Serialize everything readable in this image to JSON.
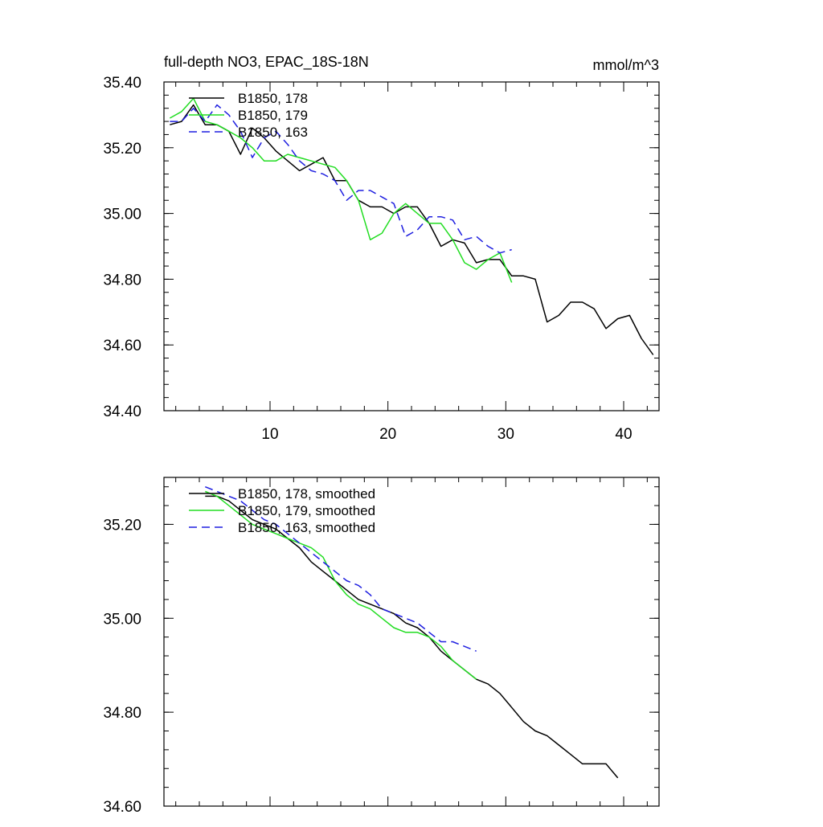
{
  "chart_data": [
    {
      "type": "line",
      "title": "full-depth NO3, EPAC_18S-18N",
      "units_label": "mmol/m^3",
      "xlim": [
        1,
        43
      ],
      "ylim": [
        34.4,
        35.4
      ],
      "xticks": [
        10,
        20,
        30,
        40
      ],
      "xtick_labels": [
        "10",
        "20",
        "30",
        "40"
      ],
      "yticks": [
        34.4,
        34.6,
        34.8,
        35.0,
        35.2,
        35.4
      ],
      "ytick_labels": [
        "34.40",
        "34.60",
        "34.80",
        "35.00",
        "35.20",
        "35.40"
      ],
      "legend_position": "top-left",
      "series": [
        {
          "name": "B1850, 178",
          "color": "#000000",
          "dash": "solid",
          "x": [
            1.5,
            2.5,
            3.5,
            4.5,
            5.5,
            6.5,
            7.5,
            8.5,
            9.5,
            10.5,
            11.5,
            12.5,
            13.5,
            14.5,
            15.5,
            16.5,
            17.5,
            18.5,
            19.5,
            20.5,
            21.5,
            22.5,
            23.5,
            24.5,
            25.5,
            26.5,
            27.5,
            28.5,
            29.5,
            30.5,
            31.5,
            32.5,
            33.5,
            34.5,
            35.5,
            36.5,
            37.5,
            38.5,
            39.5,
            40.5,
            41.5,
            42.5
          ],
          "values": [
            35.27,
            35.28,
            35.33,
            35.27,
            35.27,
            35.25,
            35.18,
            35.26,
            35.23,
            35.19,
            35.16,
            35.13,
            35.15,
            35.17,
            35.1,
            35.1,
            35.04,
            35.02,
            35.02,
            35.0,
            35.02,
            35.02,
            34.97,
            34.9,
            34.92,
            34.91,
            34.85,
            34.86,
            34.86,
            34.81,
            34.81,
            34.8,
            34.67,
            34.69,
            34.73,
            34.73,
            34.71,
            34.65,
            34.68,
            34.69,
            34.62,
            34.57
          ]
        },
        {
          "name": "B1850, 179",
          "color": "#22dd22",
          "dash": "solid",
          "x": [
            1.5,
            2.5,
            3.5,
            4.5,
            5.5,
            6.5,
            7.5,
            8.5,
            9.5,
            10.5,
            11.5,
            12.5,
            13.5,
            14.5,
            15.5,
            16.5,
            17.5,
            18.5,
            19.5,
            20.5,
            21.5,
            22.5,
            23.5,
            24.5,
            25.5,
            26.5,
            27.5,
            28.5,
            29.5,
            30.5
          ],
          "values": [
            35.29,
            35.31,
            35.35,
            35.28,
            35.27,
            35.25,
            35.23,
            35.2,
            35.16,
            35.16,
            35.18,
            35.17,
            35.16,
            35.15,
            35.14,
            35.1,
            35.04,
            34.92,
            34.94,
            35.0,
            35.03,
            35.0,
            34.97,
            34.97,
            34.92,
            34.85,
            34.83,
            34.86,
            34.88,
            34.79
          ]
        },
        {
          "name": "B1850, 163",
          "color": "#1f1fe0",
          "dash": "dashed",
          "x": [
            1.5,
            2.5,
            3.5,
            4.5,
            5.5,
            6.5,
            7.5,
            8.5,
            9.5,
            10.5,
            11.5,
            12.5,
            13.5,
            14.5,
            15.5,
            16.5,
            17.5,
            18.5,
            19.5,
            20.5,
            21.5,
            22.5,
            23.5,
            24.5,
            25.5,
            26.5,
            27.5,
            28.5,
            29.5,
            30.5
          ],
          "values": [
            35.28,
            35.28,
            35.32,
            35.28,
            35.33,
            35.3,
            35.25,
            35.17,
            35.23,
            35.25,
            35.21,
            35.16,
            35.13,
            35.12,
            35.1,
            35.04,
            35.07,
            35.07,
            35.05,
            35.03,
            34.93,
            34.95,
            34.99,
            34.99,
            34.98,
            34.92,
            34.93,
            34.9,
            34.88,
            34.89
          ]
        }
      ]
    },
    {
      "type": "line",
      "xlim": [
        1,
        43
      ],
      "ylim": [
        34.6,
        35.3
      ],
      "xticks": [
        10,
        20,
        30,
        40
      ],
      "xtick_labels": [],
      "yticks": [
        34.6,
        34.8,
        35.0,
        35.2
      ],
      "ytick_labels": [
        "34.60",
        "34.80",
        "35.00",
        "35.20"
      ],
      "legend_position": "top-left",
      "series": [
        {
          "name": "B1850, 178, smoothed",
          "color": "#000000",
          "dash": "solid",
          "x": [
            4.5,
            5.5,
            6.5,
            7.5,
            8.5,
            9.5,
            10.5,
            11.5,
            12.5,
            13.5,
            14.5,
            15.5,
            16.5,
            17.5,
            18.5,
            19.5,
            20.5,
            21.5,
            22.5,
            23.5,
            24.5,
            25.5,
            26.5,
            27.5,
            28.5,
            29.5,
            30.5,
            31.5,
            32.5,
            33.5,
            34.5,
            35.5,
            36.5,
            37.5,
            38.5,
            39.5
          ],
          "values": [
            35.26,
            35.26,
            35.25,
            35.23,
            35.21,
            35.2,
            35.19,
            35.17,
            35.15,
            35.12,
            35.1,
            35.08,
            35.06,
            35.04,
            35.03,
            35.02,
            35.01,
            34.99,
            34.98,
            34.96,
            34.93,
            34.91,
            34.89,
            34.87,
            34.86,
            34.84,
            34.81,
            34.78,
            34.76,
            34.75,
            34.73,
            34.71,
            34.69,
            34.69,
            34.69,
            34.66
          ]
        },
        {
          "name": "B1850, 179, smoothed",
          "color": "#22dd22",
          "dash": "solid",
          "x": [
            4.5,
            5.5,
            6.5,
            7.5,
            8.5,
            9.5,
            10.5,
            11.5,
            12.5,
            13.5,
            14.5,
            15.5,
            16.5,
            17.5,
            18.5,
            19.5,
            20.5,
            21.5,
            22.5,
            23.5,
            24.5,
            25.5,
            26.5,
            27.5
          ],
          "values": [
            35.27,
            35.26,
            35.24,
            35.22,
            35.2,
            35.19,
            35.18,
            35.17,
            35.16,
            35.15,
            35.13,
            35.08,
            35.05,
            35.03,
            35.02,
            35.0,
            34.98,
            34.97,
            34.97,
            34.96,
            34.94,
            34.91,
            34.89,
            34.87
          ]
        },
        {
          "name": "B1850, 163, smoothed",
          "color": "#1f1fe0",
          "dash": "dashed",
          "x": [
            4.5,
            5.5,
            6.5,
            7.5,
            8.5,
            9.5,
            10.5,
            11.5,
            12.5,
            13.5,
            14.5,
            15.5,
            16.5,
            17.5,
            18.5,
            19.5,
            20.5,
            21.5,
            22.5,
            23.5,
            24.5,
            25.5,
            26.5,
            27.5
          ],
          "values": [
            35.28,
            35.27,
            35.26,
            35.25,
            35.23,
            35.21,
            35.2,
            35.18,
            35.16,
            35.14,
            35.12,
            35.1,
            35.08,
            35.07,
            35.05,
            35.02,
            35.01,
            35.0,
            34.99,
            34.97,
            34.95,
            34.95,
            34.94,
            34.93
          ]
        }
      ]
    }
  ]
}
